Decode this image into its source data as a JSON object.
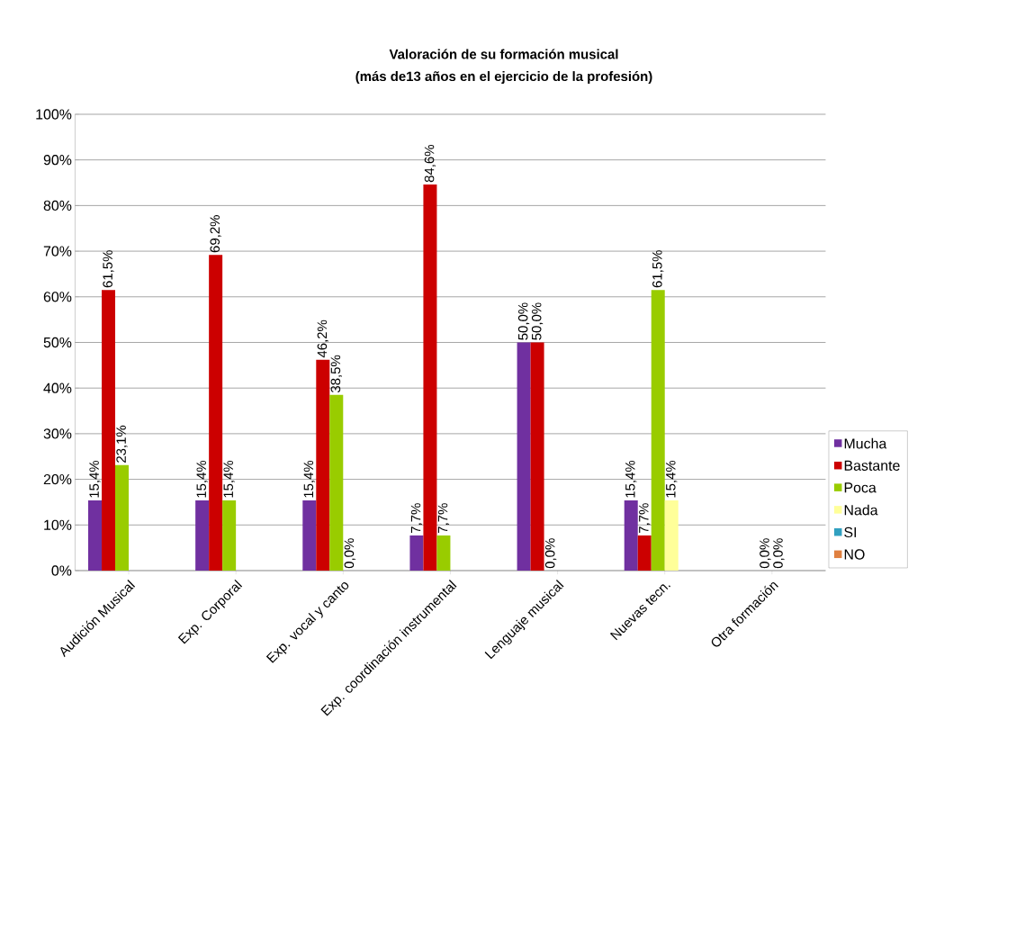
{
  "chart_data": {
    "type": "bar",
    "title": "Valoración de su formación musical",
    "subtitle": "(más de13 años en el ejercicio de la profesión)",
    "categories": [
      "Audición Musical",
      "Exp. Corporal",
      "Exp. vocal y canto",
      "Exp. coordinación instrumental",
      "Lenguaje musical",
      "Nuevas tecn.",
      "Otra formación"
    ],
    "series": [
      {
        "name": "Mucha",
        "color": "#7030a0",
        "values": [
          15.4,
          15.4,
          15.4,
          7.7,
          50.0,
          15.4,
          null
        ],
        "value_labels": [
          "15,4%",
          "15,4%",
          "15,4%",
          "7,7%",
          "50,0%",
          "15,4%",
          null
        ]
      },
      {
        "name": "Bastante",
        "color": "#cc0000",
        "values": [
          61.5,
          69.2,
          46.2,
          84.6,
          50.0,
          7.7,
          null
        ],
        "value_labels": [
          "61,5%",
          "69,2%",
          "46,2%",
          "84,6%",
          "50,0%",
          "7,7%",
          null
        ]
      },
      {
        "name": "Poca",
        "color": "#99cc00",
        "values": [
          23.1,
          15.4,
          38.5,
          7.7,
          0.0,
          61.5,
          0.0
        ],
        "value_labels": [
          "23,1%",
          "15,4%",
          "38,5%",
          "7,7%",
          "0,0%",
          "61,5%",
          "0,0%"
        ]
      },
      {
        "name": "Nada",
        "color": "#ffff99",
        "values": [
          null,
          null,
          0.0,
          null,
          null,
          15.4,
          0.0
        ],
        "value_labels": [
          null,
          null,
          "0,0%",
          null,
          null,
          "15,4%",
          "0,0%"
        ]
      },
      {
        "name": "SI",
        "color": "#31a0c0",
        "values": [
          null,
          null,
          null,
          null,
          null,
          null,
          null
        ]
      },
      {
        "name": "NO",
        "color": "#e08040",
        "values": [
          null,
          null,
          null,
          null,
          null,
          null,
          null
        ]
      }
    ],
    "ylim": [
      0,
      100
    ],
    "yticks": [
      {
        "value": 0,
        "label": "0%"
      },
      {
        "value": 10,
        "label": "10%"
      },
      {
        "value": 20,
        "label": "20%"
      },
      {
        "value": 30,
        "label": "30%"
      },
      {
        "value": 40,
        "label": "40%"
      },
      {
        "value": 50,
        "label": "50%"
      },
      {
        "value": 60,
        "label": "60%"
      },
      {
        "value": 70,
        "label": "70%"
      },
      {
        "value": 80,
        "label": "80%"
      },
      {
        "value": 90,
        "label": "90%"
      },
      {
        "value": 100,
        "label": "100%"
      }
    ],
    "grid": "y",
    "legend": "right"
  }
}
